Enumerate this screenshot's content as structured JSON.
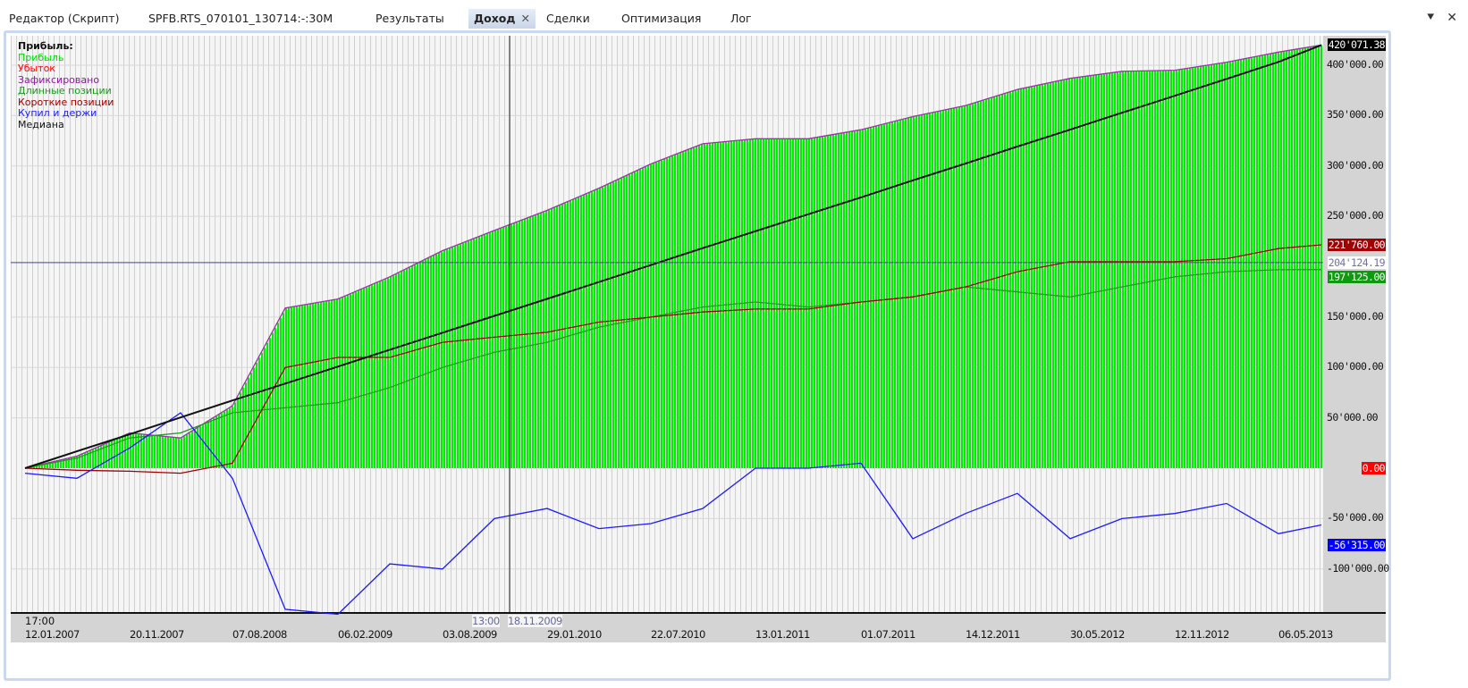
{
  "tabs": [
    {
      "label": "Редактор (Скрипт)",
      "active": false
    },
    {
      "label": "SPFB.RTS_070101_130714:-:30M",
      "active": false
    },
    {
      "label": "Результаты",
      "active": false
    },
    {
      "label": "Доход",
      "active": true,
      "close": "✕"
    },
    {
      "label": "Сделки",
      "active": false
    },
    {
      "label": "Оптимизация",
      "active": false
    },
    {
      "label": "Лог",
      "active": false
    }
  ],
  "window_icons": {
    "menu": "⯆",
    "menu_icon": "dropdown-pin-icon",
    "close": "✕",
    "close_icon": "close-icon"
  },
  "legend": {
    "title": "Прибыль:",
    "items": [
      {
        "label": "Прибыль",
        "color": "#00e000"
      },
      {
        "label": "Убыток",
        "color": "#ff0000"
      },
      {
        "label": "Зафиксировано",
        "color": "#8b1a9b"
      },
      {
        "label": "Длинные позиции",
        "color": "#1a9a1a"
      },
      {
        "label": "Короткие позиции",
        "color": "#a00000"
      },
      {
        "label": "Купил и держи",
        "color": "#1a1aff"
      },
      {
        "label": "Медиана",
        "color": "#111111"
      }
    ]
  },
  "chart_data": {
    "type": "line",
    "title": "",
    "xlabel": "",
    "ylabel": "",
    "ylim": [
      -130000,
      440000
    ],
    "grid": true,
    "legend_placement": "top-left",
    "y_ticks": [
      400000,
      350000,
      300000,
      250000,
      150000,
      100000,
      50000,
      -50000,
      -100000
    ],
    "y_tick_labels": [
      "400'000.00",
      "350'000.00",
      "300'000.00",
      "250'000.00",
      "150'000.00",
      "100'000.00",
      "50'000.00",
      "-50'000.00",
      "-100'000.00"
    ],
    "x_tick_labels": [
      "12.01.2007",
      "20.11.2007",
      "07.08.2008",
      "06.02.2009",
      "03.08.2009",
      "29.01.2010",
      "22.07.2010",
      "13.01.2011",
      "01.07.2011",
      "14.12.2011",
      "30.05.2012",
      "12.11.2012",
      "06.05.2013"
    ],
    "first_time_label": "17:00",
    "crosshair": {
      "date": "18.11.2009",
      "time": "13:00",
      "value": 204124.19,
      "value_label": "204'124.19"
    },
    "x": [
      "2007-01-12",
      "2007-06-17",
      "2007-11-20",
      "2008-03-29",
      "2008-08-07",
      "2008-11-07",
      "2009-02-06",
      "2009-05-06",
      "2009-08-03",
      "2009-11-01",
      "2010-01-29",
      "2010-04-26",
      "2010-07-22",
      "2010-10-17",
      "2011-01-13",
      "2011-04-08",
      "2011-07-01",
      "2011-09-22",
      "2011-12-14",
      "2012-03-07",
      "2012-05-30",
      "2012-08-21",
      "2012-11-12",
      "2013-02-06",
      "2013-05-06",
      "2013-07-14"
    ],
    "series": [
      {
        "name": "Прибыль",
        "style": "bars",
        "color": "#00ee00",
        "values": [
          0,
          12000,
          35000,
          30000,
          62000,
          159000,
          168000,
          190000,
          216000,
          236000,
          256000,
          278000,
          302000,
          322000,
          327000,
          327000,
          336000,
          349000,
          360000,
          376000,
          387000,
          394000,
          395000,
          403000,
          413000,
          420071.38
        ]
      },
      {
        "name": "Зафиксировано",
        "color": "#9b30a8",
        "values": [
          0,
          12000,
          35000,
          30000,
          62000,
          159000,
          168000,
          190000,
          216000,
          236000,
          256000,
          278000,
          302000,
          322000,
          327000,
          327000,
          336000,
          349000,
          360000,
          376000,
          387000,
          394000,
          395000,
          403000,
          413000,
          420071.38
        ]
      },
      {
        "name": "Длинные позиции",
        "color": "#1e9a1e",
        "values": [
          0,
          10000,
          30000,
          35000,
          55000,
          60000,
          65000,
          80000,
          100000,
          115000,
          125000,
          140000,
          150000,
          160000,
          165000,
          160000,
          165000,
          170000,
          180000,
          175000,
          170000,
          180000,
          190000,
          195000,
          197000,
          197125
        ]
      },
      {
        "name": "Короткие позиции",
        "color": "#a00000",
        "values": [
          0,
          -2000,
          -3000,
          -5000,
          5000,
          100000,
          110000,
          110000,
          125000,
          130000,
          135000,
          145000,
          150000,
          155000,
          158000,
          158000,
          165000,
          170000,
          180000,
          195000,
          205000,
          205000,
          205000,
          208000,
          218000,
          221760
        ]
      },
      {
        "name": "Купил и держи",
        "color": "#1a1aff",
        "values": [
          -5000,
          -10000,
          20000,
          55000,
          -10000,
          -140000,
          -145000,
          -95000,
          -100000,
          -50000,
          -40000,
          -60000,
          -55000,
          -40000,
          0,
          0,
          5000,
          -70000,
          -45000,
          -25000,
          -70000,
          -50000,
          -45000,
          -35000,
          -65000,
          -56315
        ]
      },
      {
        "name": "Медиана",
        "color": "#111111",
        "values": [
          0,
          16803,
          33606,
          50409,
          67211,
          84014,
          100817,
          117620,
          134423,
          151226,
          168029,
          184831,
          201634,
          218437,
          235240,
          252043,
          268846,
          285649,
          302451,
          319254,
          336057,
          352860,
          369663,
          386466,
          403269,
          420071.38
        ]
      }
    ],
    "last_values": [
      {
        "series": "Медиана",
        "label": "420'071.38",
        "bg": "#000000",
        "fg": "#ffffff",
        "value": 420071.38
      },
      {
        "series": "Короткие позиции",
        "label": "221'760.00",
        "bg": "#a00000",
        "fg": "#ffffff",
        "value": 221760
      },
      {
        "series": "Длинные позиции",
        "label": "197'125.00",
        "bg": "#0e9a0e",
        "fg": "#ffffff",
        "value": 197125
      },
      {
        "series": "Убыток",
        "label": "0.00",
        "bg": "#ff0000",
        "fg": "#ffffff",
        "value": 0
      },
      {
        "series": "Купил и держи",
        "label": "-56'315.00",
        "bg": "#0000ff",
        "fg": "#ffffff",
        "value": -56315
      }
    ]
  }
}
